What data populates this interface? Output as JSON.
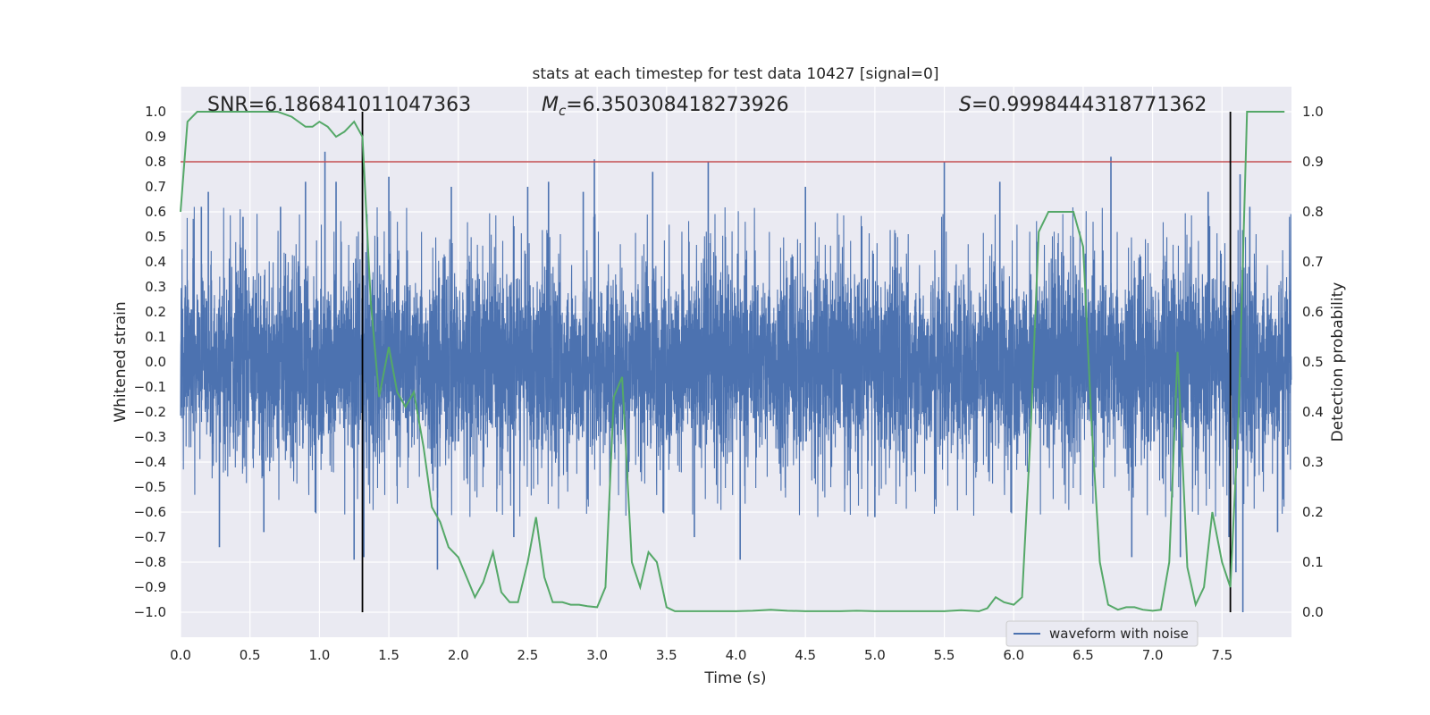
{
  "chart_data": {
    "type": "line",
    "title": "stats at each timestep for test data 10427 [signal=0]",
    "xlabel": "Time (s)",
    "ylabel": "Whitened strain",
    "y2label": "Detection probability",
    "xlim": [
      0.0,
      8.0
    ],
    "ylim": [
      -1.1,
      1.1
    ],
    "y2lim": [
      -0.05,
      1.05
    ],
    "xticks": [
      "0.0",
      "0.5",
      "1.0",
      "1.5",
      "2.0",
      "2.5",
      "3.0",
      "3.5",
      "4.0",
      "4.5",
      "5.0",
      "5.5",
      "6.0",
      "6.5",
      "7.0",
      "7.5"
    ],
    "yticks": [
      "1.0",
      "0.9",
      "0.8",
      "0.7",
      "0.6",
      "0.5",
      "0.4",
      "0.3",
      "0.2",
      "0.1",
      "0.0",
      "−0.1",
      "−0.2",
      "−0.3",
      "−0.4",
      "−0.5",
      "−0.6",
      "−0.7",
      "−0.8",
      "−0.9",
      "−1.0"
    ],
    "y2ticks": [
      "1.0",
      "0.9",
      "0.8",
      "0.7",
      "0.6",
      "0.5",
      "0.4",
      "0.3",
      "0.2",
      "0.1",
      "0.0"
    ],
    "grid": true,
    "annotations": {
      "snr": "SNR=6.186841011047363",
      "mc_symbol": "M",
      "mc_sub": "c",
      "mc_value": "=6.350308418273926",
      "s_symbol": "S",
      "s_value": "=0.9998444318771362"
    },
    "legend": {
      "label": "waveform with noise",
      "location": "lower-right"
    },
    "threshold": {
      "y": 0.8,
      "color": "#c44e52"
    },
    "vertical_markers": [
      1.31,
      7.56
    ],
    "series": [
      {
        "name": "waveform with noise",
        "color": "#4c72b0",
        "kind": "noise",
        "sample_rate_hz": 1024,
        "core_amplitude": 0.4,
        "spikes": [
          {
            "t": 0.15,
            "y": 0.62
          },
          {
            "t": 0.2,
            "y": 0.68
          },
          {
            "t": 0.28,
            "y": -0.74
          },
          {
            "t": 0.45,
            "y": 0.58
          },
          {
            "t": 0.6,
            "y": -0.68
          },
          {
            "t": 0.72,
            "y": 0.62
          },
          {
            "t": 0.9,
            "y": 0.72
          },
          {
            "t": 1.04,
            "y": 0.84
          },
          {
            "t": 1.12,
            "y": 0.72
          },
          {
            "t": 1.25,
            "y": -0.79
          },
          {
            "t": 1.32,
            "y": -0.78
          },
          {
            "t": 1.5,
            "y": 0.74
          },
          {
            "t": 1.85,
            "y": -0.83
          },
          {
            "t": 1.95,
            "y": 0.7
          },
          {
            "t": 2.4,
            "y": -0.7
          },
          {
            "t": 2.5,
            "y": 0.7
          },
          {
            "t": 2.65,
            "y": 0.72
          },
          {
            "t": 2.9,
            "y": 0.68
          },
          {
            "t": 2.98,
            "y": 0.81
          },
          {
            "t": 3.4,
            "y": 0.76
          },
          {
            "t": 3.7,
            "y": -0.7
          },
          {
            "t": 3.8,
            "y": 0.8
          },
          {
            "t": 4.03,
            "y": -0.79
          },
          {
            "t": 4.5,
            "y": 0.7
          },
          {
            "t": 5.0,
            "y": -0.62
          },
          {
            "t": 5.5,
            "y": 0.8
          },
          {
            "t": 5.9,
            "y": 0.72
          },
          {
            "t": 6.7,
            "y": 0.82
          },
          {
            "t": 6.85,
            "y": -0.78
          },
          {
            "t": 7.2,
            "y": -0.78
          },
          {
            "t": 7.4,
            "y": 0.68
          },
          {
            "t": 7.55,
            "y": -0.7
          },
          {
            "t": 7.6,
            "y": -0.84
          },
          {
            "t": 7.63,
            "y": 0.75
          },
          {
            "t": 7.65,
            "y": -1.0
          },
          {
            "t": 7.7,
            "y": 0.62
          },
          {
            "t": 7.9,
            "y": -0.68
          }
        ]
      },
      {
        "name": "detection probability",
        "color": "#55a868",
        "axis": "right",
        "x": [
          0.0,
          0.05,
          0.12,
          0.2,
          0.3,
          0.4,
          0.5,
          0.6,
          0.7,
          0.8,
          0.9,
          0.95,
          1.0,
          1.06,
          1.12,
          1.18,
          1.25,
          1.31,
          1.37,
          1.43,
          1.5,
          1.56,
          1.62,
          1.68,
          1.75,
          1.81,
          1.87,
          1.93,
          2.0,
          2.06,
          2.12,
          2.18,
          2.25,
          2.31,
          2.37,
          2.43,
          2.5,
          2.56,
          2.62,
          2.68,
          2.75,
          2.81,
          2.87,
          2.93,
          3.0,
          3.06,
          3.12,
          3.18,
          3.25,
          3.31,
          3.37,
          3.43,
          3.5,
          3.56,
          3.62,
          3.75,
          3.87,
          4.0,
          4.12,
          4.25,
          4.37,
          4.5,
          4.62,
          4.75,
          4.87,
          5.0,
          5.12,
          5.25,
          5.37,
          5.5,
          5.62,
          5.75,
          5.81,
          5.87,
          5.93,
          6.0,
          6.06,
          6.12,
          6.18,
          6.25,
          6.31,
          6.37,
          6.43,
          6.5,
          6.56,
          6.62,
          6.68,
          6.75,
          6.81,
          6.87,
          6.93,
          7.0,
          7.06,
          7.12,
          7.18,
          7.25,
          7.31,
          7.37,
          7.43,
          7.5,
          7.56,
          7.62,
          7.68,
          7.75,
          7.95
        ],
        "y": [
          0.8,
          0.98,
          1.0,
          1.0,
          1.0,
          1.0,
          1.0,
          1.0,
          1.0,
          0.99,
          0.97,
          0.97,
          0.98,
          0.97,
          0.95,
          0.96,
          0.98,
          0.95,
          0.62,
          0.43,
          0.53,
          0.44,
          0.41,
          0.44,
          0.33,
          0.21,
          0.18,
          0.13,
          0.11,
          0.07,
          0.03,
          0.06,
          0.12,
          0.04,
          0.02,
          0.02,
          0.1,
          0.19,
          0.07,
          0.02,
          0.02,
          0.015,
          0.015,
          0.012,
          0.01,
          0.05,
          0.43,
          0.47,
          0.1,
          0.05,
          0.12,
          0.1,
          0.01,
          0.002,
          0.002,
          0.002,
          0.002,
          0.002,
          0.003,
          0.005,
          0.003,
          0.002,
          0.002,
          0.002,
          0.003,
          0.002,
          0.002,
          0.002,
          0.002,
          0.002,
          0.004,
          0.002,
          0.008,
          0.03,
          0.02,
          0.015,
          0.03,
          0.35,
          0.76,
          0.8,
          0.8,
          0.8,
          0.8,
          0.73,
          0.38,
          0.1,
          0.015,
          0.005,
          0.01,
          0.01,
          0.005,
          0.003,
          0.005,
          0.1,
          0.52,
          0.09,
          0.015,
          0.05,
          0.2,
          0.1,
          0.05,
          0.4,
          1.0,
          1.0,
          1.0
        ]
      }
    ]
  }
}
